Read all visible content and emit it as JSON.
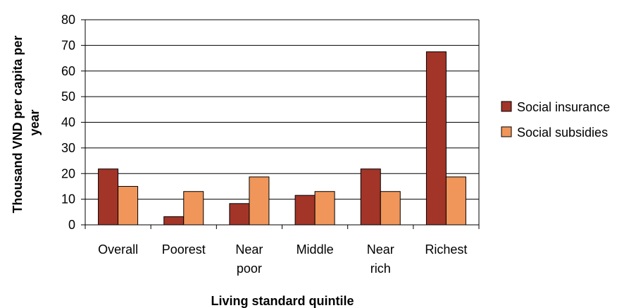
{
  "chart_data": {
    "type": "bar",
    "categories": [
      [
        "Overall"
      ],
      [
        "Poorest"
      ],
      [
        "Near",
        "poor"
      ],
      [
        "Middle"
      ],
      [
        "Near",
        "rich"
      ],
      [
        "Richest"
      ]
    ],
    "series": [
      {
        "name": "Social insurance",
        "color": "#a33428",
        "values": [
          21.8,
          3.2,
          8.3,
          11.5,
          21.8,
          67.5
        ]
      },
      {
        "name": "Social subsidies",
        "color": "#f0965a",
        "values": [
          15,
          13,
          18.7,
          13,
          13,
          18.7
        ]
      }
    ],
    "title": "",
    "xlabel": "Living standard quintile",
    "ylabel": [
      "Thousand VND per capita per",
      "year"
    ],
    "ylim": [
      0,
      80
    ],
    "yticks": [
      0,
      10,
      20,
      30,
      40,
      50,
      60,
      70,
      80
    ],
    "grid": true,
    "legend_position": "right"
  }
}
